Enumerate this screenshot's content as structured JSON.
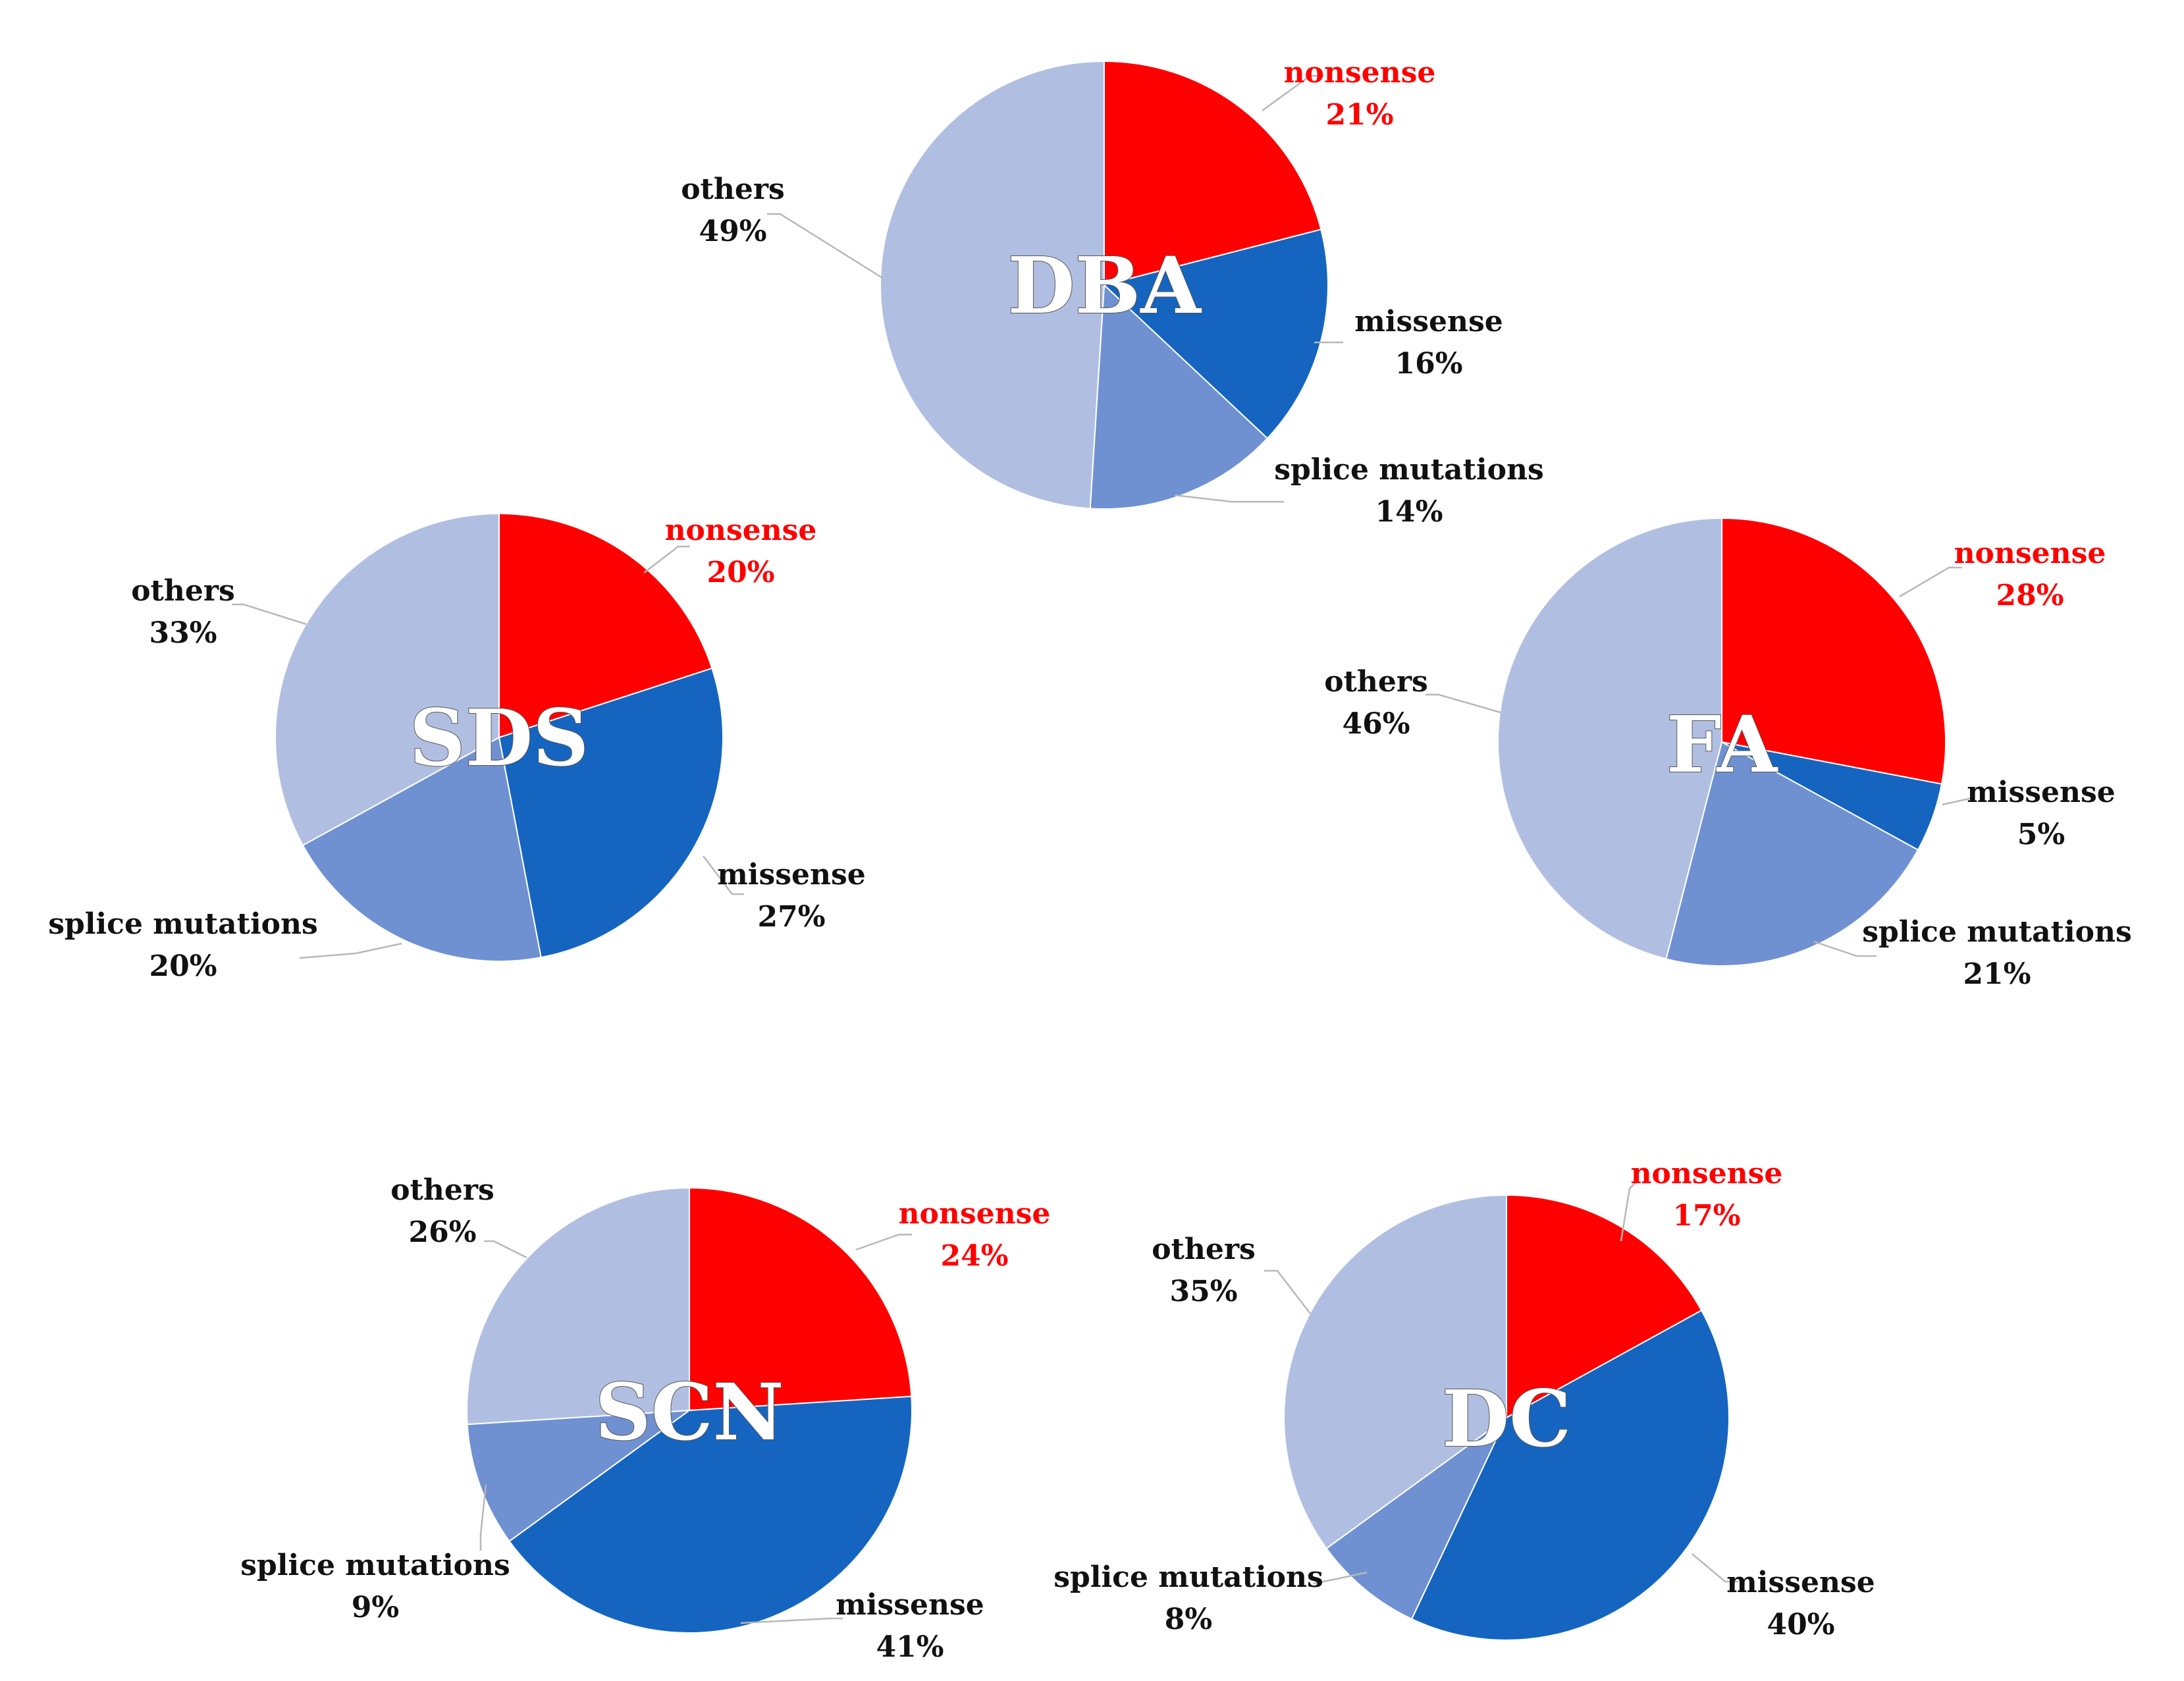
{
  "colors": {
    "nonsense": "#ff0000",
    "missense": "#1565c0",
    "splice mutations": "#6f91d2",
    "others": "#b0bfe1",
    "label_highlight": "#ff0000",
    "label_normal": "#111111"
  },
  "chart_data": [
    {
      "type": "pie",
      "title": "DBA",
      "categories": [
        "nonsense",
        "missense",
        "splice mutations",
        "others"
      ],
      "values": [
        21,
        16,
        14,
        49
      ],
      "value_labels": [
        "21%",
        "16%",
        "14%",
        "49%"
      ]
    },
    {
      "type": "pie",
      "title": "SDS",
      "categories": [
        "nonsense",
        "missense",
        "splice mutations",
        "others"
      ],
      "values": [
        20,
        27,
        20,
        33
      ],
      "value_labels": [
        "20%",
        "27%",
        "20%",
        "33%"
      ]
    },
    {
      "type": "pie",
      "title": "FA",
      "categories": [
        "nonsense",
        "missense",
        "splice mutations",
        "others"
      ],
      "values": [
        28,
        5,
        21,
        46
      ],
      "value_labels": [
        "28%",
        "5%",
        "21%",
        "46%"
      ]
    },
    {
      "type": "pie",
      "title": "SCN",
      "categories": [
        "nonsense",
        "missense",
        "splice mutations",
        "others"
      ],
      "values": [
        24,
        41,
        9,
        26
      ],
      "value_labels": [
        "24%",
        "41%",
        "9%",
        "26%"
      ]
    },
    {
      "type": "pie",
      "title": "DC",
      "categories": [
        "nonsense",
        "missense",
        "splice mutations",
        "others"
      ],
      "values": [
        17,
        40,
        8,
        35
      ],
      "value_labels": [
        "17%",
        "40%",
        "8%",
        "35%"
      ]
    }
  ]
}
